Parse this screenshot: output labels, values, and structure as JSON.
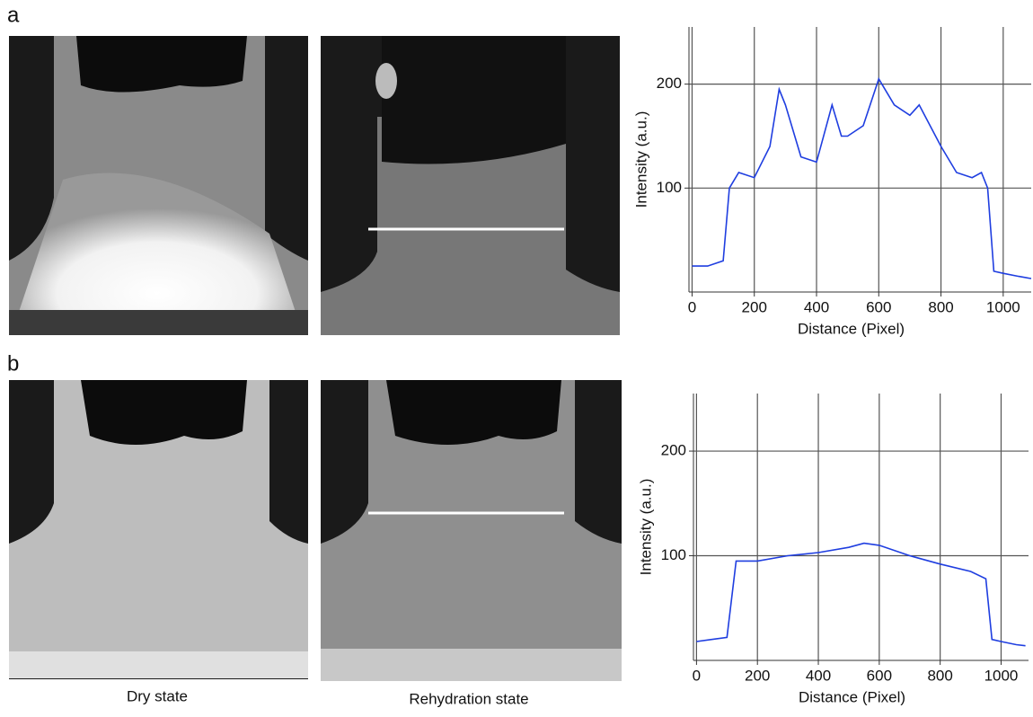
{
  "panels": [
    {
      "label": "a",
      "caption": "Dry state"
    },
    {
      "label": "b",
      "caption": "Rehydration state"
    }
  ],
  "chart_data": [
    {
      "type": "line",
      "xlabel": "Distance (Pixel)",
      "ylabel": "Intensity (a.u.)",
      "xlim": [
        -10,
        1090
      ],
      "ylim": [
        0,
        255
      ],
      "xticks": [
        0,
        200,
        400,
        600,
        800,
        1000
      ],
      "yticks": [
        100,
        200
      ],
      "grid": true,
      "series": [
        {
          "color": "#1f3ee0",
          "x": [
            0,
            50,
            100,
            120,
            150,
            200,
            250,
            280,
            300,
            350,
            400,
            450,
            480,
            500,
            550,
            600,
            650,
            700,
            730,
            800,
            850,
            900,
            930,
            950,
            970,
            1000,
            1050,
            1090
          ],
          "values": [
            25,
            25,
            30,
            100,
            115,
            110,
            140,
            195,
            180,
            130,
            125,
            180,
            150,
            150,
            160,
            205,
            180,
            170,
            180,
            140,
            115,
            110,
            115,
            100,
            20,
            18,
            15,
            13
          ]
        }
      ]
    },
    {
      "type": "line",
      "xlabel": "Distance (Pixel)",
      "ylabel": "Intensity (a.u.)",
      "xlim": [
        -10,
        1090
      ],
      "ylim": [
        0,
        255
      ],
      "xticks": [
        0,
        200,
        400,
        600,
        800,
        1000
      ],
      "yticks": [
        100,
        200
      ],
      "grid": true,
      "series": [
        {
          "color": "#1f3ee0",
          "x": [
            0,
            50,
            100,
            130,
            200,
            300,
            400,
            500,
            550,
            600,
            700,
            800,
            900,
            950,
            970,
            1000,
            1050,
            1080
          ],
          "values": [
            18,
            20,
            22,
            95,
            95,
            100,
            103,
            108,
            112,
            110,
            100,
            92,
            85,
            78,
            20,
            18,
            15,
            14
          ]
        }
      ]
    }
  ]
}
